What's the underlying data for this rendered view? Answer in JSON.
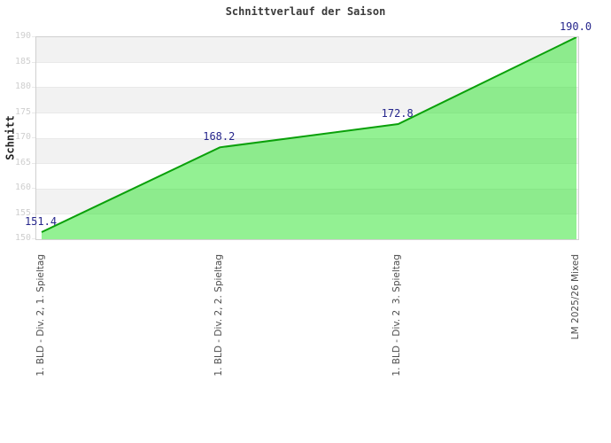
{
  "chart_data": {
    "type": "area",
    "title": "Schnittverlauf der Saison",
    "ylabel": "Schnitt",
    "xlabel": "",
    "categories": [
      "1. BLD - Div. 2, 1. Spieltag",
      "1. BLD - Div. 2, 2. Spieltag",
      "1. BLD - Div. 2  3. Spieltag",
      "LM 2025/26 Mixed"
    ],
    "values": [
      151.4,
      168.2,
      172.8,
      190.0
    ],
    "value_labels": [
      "151.4",
      "168.2",
      "172.8",
      "190.0"
    ],
    "ylim": [
      150,
      190
    ],
    "ytick_step": 5,
    "yticks": [
      150,
      155,
      160,
      165,
      170,
      175,
      180,
      185,
      190
    ],
    "grid": "alternating horizontal bands",
    "legend": "none",
    "colors": {
      "line": "#0aa00a",
      "area_fill": "#28e428",
      "area_fill_opacity": "0.5",
      "value_label": "#26268c",
      "band_gray": "#f2f2f2",
      "band_white": "#ffffff",
      "band_line": "#e9e9e9",
      "y_tick_text": "#cfcfcf",
      "x_tick_text": "#4d4d4d",
      "title_text": "#3a3a3a",
      "axis_border": "#d0d0d0"
    }
  }
}
